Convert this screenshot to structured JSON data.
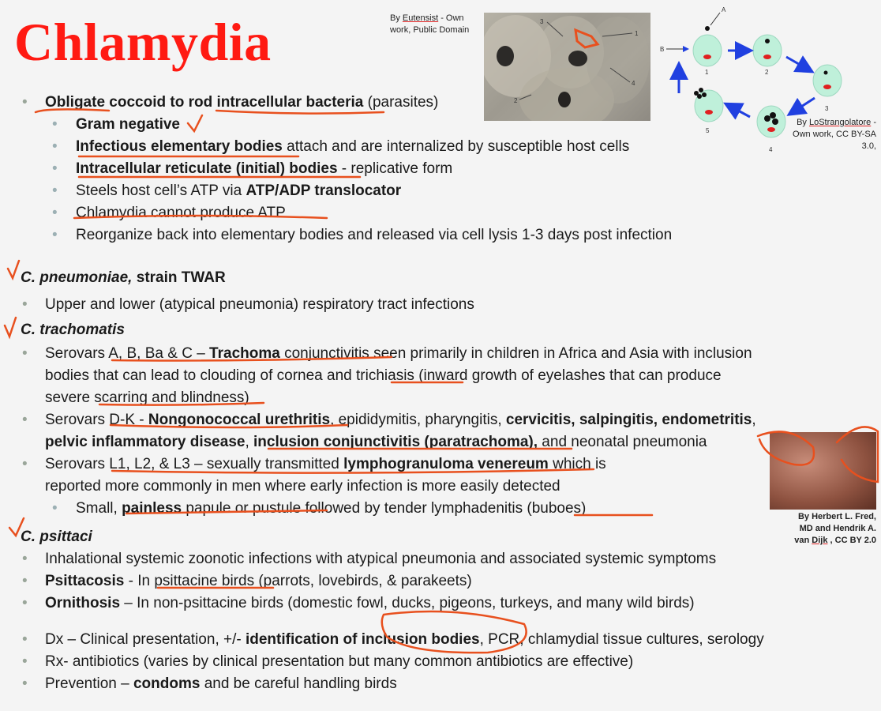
{
  "title": "Chlamydia",
  "credits": {
    "micrograph_parts": [
      "By ",
      "Eutensist",
      " - Own work, Public Domain"
    ],
    "cycle_parts": [
      "By ",
      "LoStrangolatore",
      " - Own work, CC BY-SA 3.0,"
    ],
    "clinical_parts": [
      "By Herbert L. Fred, MD and Hendrik A. van ",
      "Dijk",
      " , CC BY 2.0"
    ]
  },
  "figures": {
    "micrograph_labels": [
      "3",
      "1",
      "4",
      "2"
    ],
    "cycle_labels": [
      "A",
      "B",
      "1",
      "2",
      "3",
      "4",
      "5"
    ],
    "colors": {
      "title": "#ff1a12",
      "ink": "#e8501e",
      "cell": "#bff0da",
      "arrow": "#2040e0"
    }
  },
  "lines": [
    {
      "cls": "l1",
      "parts": [
        {
          "b": true,
          "t": "Obligate"
        },
        {
          "t": " "
        },
        {
          "b": true,
          "t": "coccoid to rod intracellular bacteria"
        },
        {
          "t": " (parasites)"
        }
      ]
    },
    {
      "cls": "l2",
      "parts": [
        {
          "b": true,
          "t": "Gram negative"
        }
      ]
    },
    {
      "cls": "l2",
      "parts": [
        {
          "b": true,
          "t": "Infectious elementary bodies"
        },
        {
          "t": " attach and are internalized by susceptible host cells"
        }
      ]
    },
    {
      "cls": "l2",
      "parts": [
        {
          "b": true,
          "t": "Intracellular reticulate (initial) bodies"
        },
        {
          "t": " - replicative form"
        }
      ]
    },
    {
      "cls": "l2",
      "parts": [
        {
          "t": "Steels host cell’s ATP via "
        },
        {
          "b": true,
          "t": "ATP/ADP translocator"
        }
      ]
    },
    {
      "cls": "l2",
      "parts": [
        {
          "t": "Chlamydia cannot produce ATP"
        }
      ]
    },
    {
      "cls": "l2",
      "parts": [
        {
          "t": "Reorganize back into elementary bodies and released via cell lysis 1-3 days post infection"
        }
      ]
    },
    {
      "cls": "head",
      "parts": [
        {
          "b": true,
          "i": true,
          "t": "C. pneumoniae,"
        },
        {
          "b": true,
          "t": " strain TWAR"
        }
      ]
    },
    {
      "cls": "l1",
      "parts": [
        {
          "t": "Upper and lower (atypical pneumonia) respiratory tract infections"
        }
      ]
    },
    {
      "cls": "head",
      "parts": [
        {
          "b": true,
          "i": true,
          "t": "C. trachomatis"
        }
      ]
    },
    {
      "cls": "l1",
      "parts": [
        {
          "t": "Serovars A, B, Ba & C – "
        },
        {
          "b": true,
          "t": "Trachoma"
        },
        {
          "t": " conjunctivitis seen primarily in children in Africa and Asia with inclusion"
        }
      ]
    },
    {
      "cls": "cont",
      "parts": [
        {
          "t": "bodies that can lead to clouding of cornea and trichiasis (inward growth of eyelashes that can produce"
        }
      ]
    },
    {
      "cls": "cont",
      "parts": [
        {
          "t": "severe scarring and blindness)"
        }
      ]
    },
    {
      "cls": "l1",
      "parts": [
        {
          "t": "Serovars D-K - "
        },
        {
          "b": true,
          "t": "Nongonococcal urethritis"
        },
        {
          "t": ", epididymitis, pharyngitis, "
        },
        {
          "b": true,
          "t": "cervicitis, salpingitis, endometritis"
        },
        {
          "t": ","
        }
      ]
    },
    {
      "cls": "cont",
      "parts": [
        {
          "b": true,
          "t": "pelvic inflammatory disease"
        },
        {
          "t": ", "
        },
        {
          "b": true,
          "t": "inclusion conjunctivitis (paratrachoma),"
        },
        {
          "t": " and neonatal pneumonia"
        }
      ]
    },
    {
      "cls": "l1",
      "parts": [
        {
          "t": "Serovars L1, L2, & L3 – sexually transmitted "
        },
        {
          "b": true,
          "t": "lymphogranuloma venereum"
        },
        {
          "t": " which is"
        }
      ]
    },
    {
      "cls": "cont",
      "parts": [
        {
          "t": "reported more commonly in men where early infection is more easily detected"
        }
      ]
    },
    {
      "cls": "l2",
      "parts": [
        {
          "t": "Small, "
        },
        {
          "b": true,
          "t": "painless"
        },
        {
          "t": " papule or pustule followed by tender lymphadenitis (buboes)"
        }
      ]
    },
    {
      "cls": "head",
      "parts": [
        {
          "b": true,
          "i": true,
          "t": "C. psittaci"
        }
      ]
    },
    {
      "cls": "l1",
      "parts": [
        {
          "t": "Inhalational systemic zoonotic infections  with atypical pneumonia and associated systemic symptoms"
        }
      ]
    },
    {
      "cls": "l1",
      "parts": [
        {
          "b": true,
          "t": "Psittacosis"
        },
        {
          "t": " - In psittacine birds (parrots, lovebirds, & parakeets)"
        }
      ]
    },
    {
      "cls": "l1",
      "parts": [
        {
          "b": true,
          "t": "Ornithosis"
        },
        {
          "t": " – In non-psittacine birds (domestic fowl, ducks, pigeons, turkeys, and many wild birds)"
        }
      ]
    },
    {
      "cls": "l1",
      "parts": [
        {
          "t": "Dx – Clinical presentation, +/-  "
        },
        {
          "b": true,
          "t": "identification of inclusion bodies"
        },
        {
          "t": ", PCR, chlamydial tissue cultures, serology"
        }
      ]
    },
    {
      "cls": "l1",
      "parts": [
        {
          "t": "Rx- antibiotics (varies by clinical presentation but many common antibiotics are effective)"
        }
      ]
    },
    {
      "cls": "l1",
      "parts": [
        {
          "t": "Prevention – "
        },
        {
          "b": true,
          "t": "condoms"
        },
        {
          "t": " and be careful handling birds"
        }
      ]
    }
  ]
}
